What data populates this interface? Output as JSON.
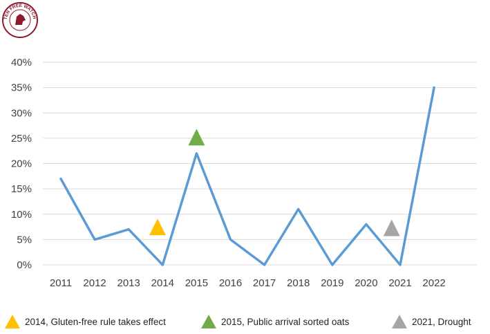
{
  "logo": {
    "text": "GLUTEN FREE WATCHDOG"
  },
  "colors": {
    "line": "#5b9bd5",
    "grid": "#d9d9d9",
    "logo": "#8b1a2b"
  },
  "chart_data": {
    "type": "line",
    "title": "",
    "xlabel": "",
    "ylabel": "",
    "categories": [
      "2011",
      "2012",
      "2013",
      "2014",
      "2015",
      "2016",
      "2017",
      "2018",
      "2019",
      "2020",
      "2021",
      "2022"
    ],
    "series": [
      {
        "name": "Percent",
        "values": [
          17,
          5,
          7,
          0,
          22,
          5,
          0,
          11,
          0,
          8,
          0,
          35
        ],
        "color": "#5b9bd5"
      }
    ],
    "ylim": [
      0,
      40
    ],
    "yticks": [
      0,
      5,
      10,
      15,
      20,
      25,
      30,
      35,
      40
    ],
    "ytick_format": "%",
    "grid": true,
    "markers": [
      {
        "label": "2014, Gluten-free rule takes effect",
        "color": "#ffc000",
        "x": 2013.85,
        "y": 7.5
      },
      {
        "label": "2015, Public arrival sorted oats",
        "color": "#70ad47",
        "x": 2015.0,
        "y": 25.2
      },
      {
        "label": "2021, Drought",
        "color": "#a5a5a5",
        "x": 2020.75,
        "y": 7.3
      }
    ]
  }
}
